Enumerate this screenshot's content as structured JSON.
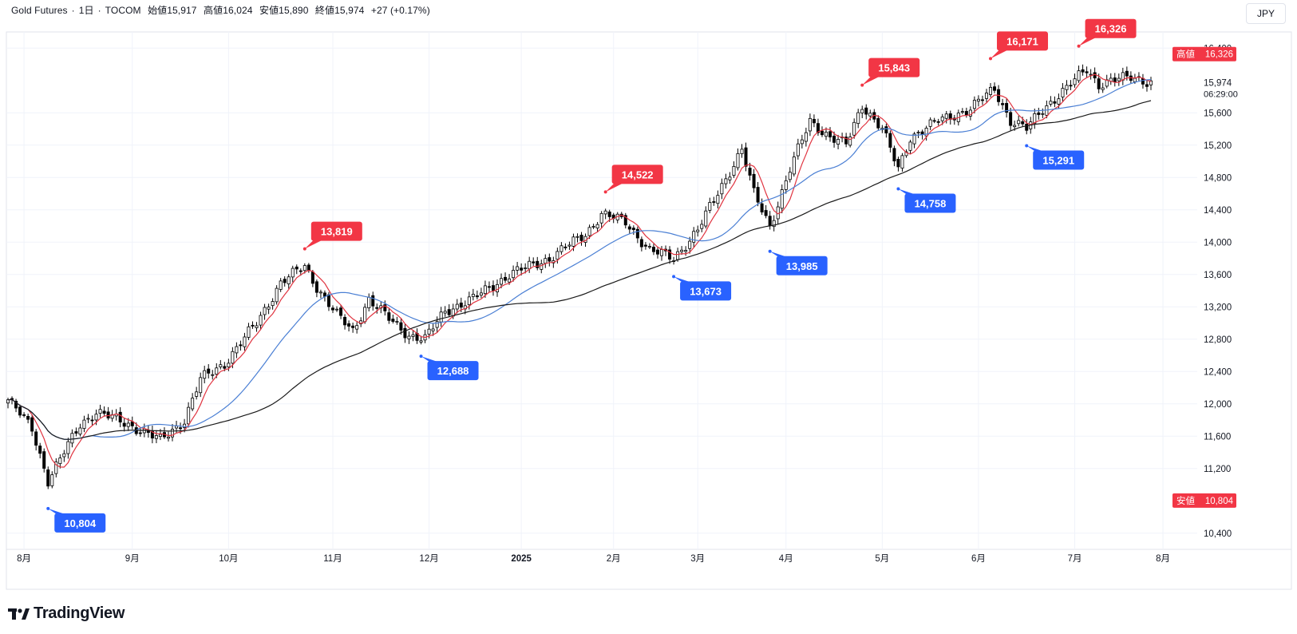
{
  "legend": {
    "symbol": "Gold Futures",
    "sep1": "·",
    "interval": "1日",
    "sep2": "·",
    "exchange": "TOCOM",
    "open": "始値15,917",
    "high": "高値16,024",
    "low": "安値15,890",
    "close": "終値15,974",
    "change": "+27 (+0.17%)"
  },
  "currency_button": "JPY",
  "logo_text": "TradingView",
  "price_axis": {
    "ticks": [
      "16,400",
      "15,600",
      "15,200",
      "14,800",
      "14,400",
      "14,000",
      "13,600",
      "13,200",
      "12,800",
      "12,400",
      "12,000",
      "11,600",
      "11,200",
      "10,400"
    ],
    "current_price": "15,974",
    "countdown": "06:29:00",
    "high_badge_label": "高値",
    "high_badge_value": "16,326",
    "low_badge_label": "安値",
    "low_badge_value": "10,804"
  },
  "time_axis": {
    "labels": [
      "8月",
      "9月",
      "10月",
      "11月",
      "12月",
      "2025",
      "2月",
      "3月",
      "4月",
      "5月",
      "6月",
      "7月",
      "8月"
    ]
  },
  "colors": {
    "up_candle": "#ffffff",
    "down_candle": "#000000",
    "ma_short": "#e03440",
    "ma_mid": "#4a7fd4",
    "ma_long": "#1a1a1a",
    "high_label": "#f23645",
    "low_label": "#2962ff",
    "grid": "#f0f3fa"
  },
  "chart_data": {
    "type": "candlestick",
    "title": "",
    "xlabel": "",
    "ylabel": "",
    "ylim": [
      10200,
      16600
    ],
    "grid": true,
    "series_names": [],
    "months": [
      "8月",
      "9月",
      "10月",
      "11月",
      "12月",
      "2025",
      "2月",
      "3月",
      "4月",
      "5月",
      "6月",
      "7月",
      "8月"
    ],
    "anchors": [
      {
        "i": 0,
        "v": 12050
      },
      {
        "i": 6,
        "v": 11700
      },
      {
        "i": 10,
        "v": 11050
      },
      {
        "i": 18,
        "v": 11750
      },
      {
        "i": 22,
        "v": 11900
      },
      {
        "i": 30,
        "v": 11750
      },
      {
        "i": 38,
        "v": 11550
      },
      {
        "i": 44,
        "v": 11800
      },
      {
        "i": 48,
        "v": 12300
      },
      {
        "i": 54,
        "v": 12500
      },
      {
        "i": 62,
        "v": 13000
      },
      {
        "i": 68,
        "v": 13500
      },
      {
        "i": 74,
        "v": 13700
      },
      {
        "i": 77,
        "v": 13450
      },
      {
        "i": 82,
        "v": 13100
      },
      {
        "i": 86,
        "v": 12900
      },
      {
        "i": 90,
        "v": 13300
      },
      {
        "i": 95,
        "v": 13050
      },
      {
        "i": 100,
        "v": 12850
      },
      {
        "i": 104,
        "v": 12800
      },
      {
        "i": 109,
        "v": 13150
      },
      {
        "i": 116,
        "v": 13300
      },
      {
        "i": 125,
        "v": 13600
      },
      {
        "i": 135,
        "v": 13800
      },
      {
        "i": 144,
        "v": 14100
      },
      {
        "i": 148,
        "v": 14350
      },
      {
        "i": 154,
        "v": 14250
      },
      {
        "i": 160,
        "v": 13900
      },
      {
        "i": 166,
        "v": 13800
      },
      {
        "i": 172,
        "v": 14150
      },
      {
        "i": 178,
        "v": 14700
      },
      {
        "i": 183,
        "v": 15150
      },
      {
        "i": 186,
        "v": 14600
      },
      {
        "i": 190,
        "v": 14200
      },
      {
        "i": 195,
        "v": 14900
      },
      {
        "i": 200,
        "v": 15500
      },
      {
        "i": 205,
        "v": 15300
      },
      {
        "i": 209,
        "v": 15200
      },
      {
        "i": 213,
        "v": 15700
      },
      {
        "i": 218,
        "v": 15400
      },
      {
        "i": 222,
        "v": 14900
      },
      {
        "i": 225,
        "v": 15300
      },
      {
        "i": 232,
        "v": 15500
      },
      {
        "i": 240,
        "v": 15650
      },
      {
        "i": 246,
        "v": 15900
      },
      {
        "i": 250,
        "v": 15500
      },
      {
        "i": 254,
        "v": 15400
      },
      {
        "i": 258,
        "v": 15650
      },
      {
        "i": 264,
        "v": 15900
      },
      {
        "i": 269,
        "v": 16150
      },
      {
        "i": 272,
        "v": 15950
      },
      {
        "i": 280,
        "v": 16050
      },
      {
        "i": 285,
        "v": 15974
      }
    ],
    "moving_average_periods": [
      5,
      25,
      75
    ],
    "high_labels": [
      "13,819",
      "14,522",
      "15,843",
      "16,171",
      "16,326"
    ],
    "low_labels": [
      "10,804",
      "12,688",
      "13,673",
      "13,985",
      "14,758",
      "15,291"
    ]
  }
}
